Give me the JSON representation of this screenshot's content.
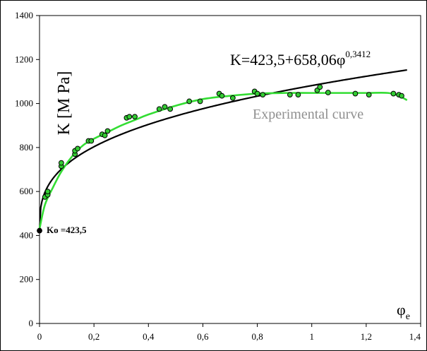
{
  "chart_data": {
    "type": "scatter",
    "ylabel": "K [M Pa]",
    "xlabel": "φ",
    "xlabel_sub": "e",
    "xlim": [
      0,
      1.4
    ],
    "ylim": [
      0,
      1400
    ],
    "x_ticks": [
      0,
      0.2,
      0.4,
      0.6,
      0.8,
      1,
      1.2,
      1.4
    ],
    "x_tick_labels": [
      "0",
      "0,2",
      "0,4",
      "0,6",
      "0,8",
      "1",
      "1,2",
      "1,4"
    ],
    "y_ticks": [
      0,
      200,
      400,
      600,
      800,
      1000,
      1200,
      1400
    ],
    "y_tick_labels": [
      "0",
      "200",
      "400",
      "600",
      "800",
      "1000",
      "1200",
      "1400"
    ],
    "grid": false,
    "annotations": {
      "equation_main": "K=423,5+658,06φ",
      "equation_exp": "0,3412",
      "experimental_label": "Experimental curve",
      "ko_label": "Ko =423,5"
    },
    "model": {
      "K0": 423.5,
      "A": 658.06,
      "n": 0.3412,
      "x_max": 1.35,
      "color": "#000000"
    },
    "experimental_curve": {
      "color": "#33dd33",
      "label_color": "#909090",
      "x": [
        0,
        0.02,
        0.05,
        0.08,
        0.12,
        0.16,
        0.2,
        0.25,
        0.3,
        0.35,
        0.4,
        0.5,
        0.6,
        0.7,
        0.8,
        0.9,
        1.0,
        1.1,
        1.2,
        1.28,
        1.32,
        1.35
      ],
      "y": [
        430,
        540,
        620,
        690,
        760,
        810,
        840,
        870,
        900,
        925,
        950,
        990,
        1020,
        1035,
        1045,
        1048,
        1048,
        1048,
        1048,
        1048,
        1035,
        1015
      ]
    },
    "points": {
      "fill": "#33cc33",
      "stroke": "#000000",
      "x": [
        0,
        0.02,
        0.03,
        0.03,
        0.08,
        0.08,
        0.13,
        0.13,
        0.14,
        0.18,
        0.19,
        0.23,
        0.24,
        0.25,
        0.32,
        0.33,
        0.35,
        0.44,
        0.46,
        0.48,
        0.55,
        0.59,
        0.66,
        0.67,
        0.71,
        0.79,
        0.8,
        0.82,
        0.92,
        0.95,
        1.02,
        1.03,
        1.06,
        1.16,
        1.21,
        1.3,
        1.32,
        1.33
      ],
      "y": [
        422,
        575,
        585,
        600,
        715,
        730,
        770,
        785,
        795,
        830,
        830,
        860,
        855,
        875,
        935,
        940,
        940,
        975,
        985,
        975,
        1010,
        1010,
        1045,
        1035,
        1025,
        1055,
        1045,
        1040,
        1040,
        1040,
        1060,
        1075,
        1050,
        1045,
        1040,
        1045,
        1040,
        1035
      ]
    }
  }
}
